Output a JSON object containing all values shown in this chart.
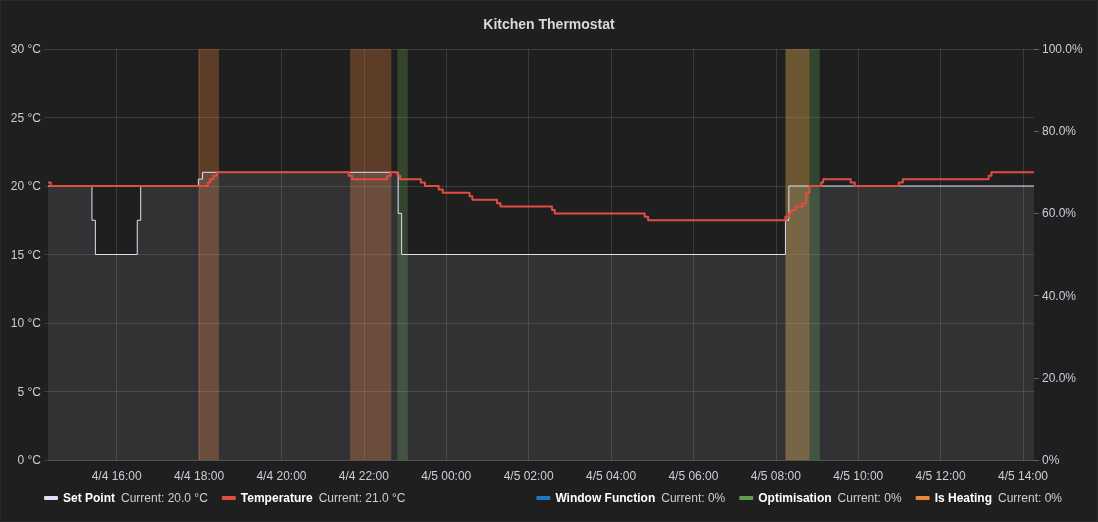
{
  "chart_data": {
    "type": "step",
    "title": "Kitchen Thermostat",
    "xlim": [
      "--04-04T14:20",
      "--04-05T14:16"
    ],
    "xticks": [
      {
        "value": "--04-04T16:00",
        "label": "4/4 16:00"
      },
      {
        "value": "--04-04T18:00",
        "label": "4/4 18:00"
      },
      {
        "value": "--04-04T20:00",
        "label": "4/4 20:00"
      },
      {
        "value": "--04-04T22:00",
        "label": "4/4 22:00"
      },
      {
        "value": "--04-05T00:00",
        "label": "4/5 00:00"
      },
      {
        "value": "--04-05T02:00",
        "label": "4/5 02:00"
      },
      {
        "value": "--04-05T04:00",
        "label": "4/5 04:00"
      },
      {
        "value": "--04-05T06:00",
        "label": "4/5 06:00"
      },
      {
        "value": "--04-05T08:00",
        "label": "4/5 08:00"
      },
      {
        "value": "--04-05T10:00",
        "label": "4/5 10:00"
      },
      {
        "value": "--04-05T12:00",
        "label": "4/5 12:00"
      },
      {
        "value": "--04-05T14:00",
        "label": "4/5 14:00"
      }
    ],
    "ylim": [
      0,
      30
    ],
    "yticks": [
      {
        "value": 0,
        "label": "0 °C"
      },
      {
        "value": 5,
        "label": "5 °C"
      },
      {
        "value": 10,
        "label": "10 °C"
      },
      {
        "value": 15,
        "label": "15 °C"
      },
      {
        "value": 20,
        "label": "20 °C"
      },
      {
        "value": 25,
        "label": "25 °C"
      },
      {
        "value": 30,
        "label": "30 °C"
      }
    ],
    "y2lim": [
      0,
      100
    ],
    "y2ticks": [
      {
        "value": 0,
        "label": "0%"
      },
      {
        "value": 20,
        "label": "20.0%"
      },
      {
        "value": 40,
        "label": "40.0%"
      },
      {
        "value": 60,
        "label": "60.0%"
      },
      {
        "value": 80,
        "label": "80.0%"
      },
      {
        "value": 100,
        "label": "100.0%"
      }
    ],
    "grid": true,
    "legend": "bottom",
    "annotations": [
      "Current: 20.0 °C",
      "Current: 21.0 °C",
      "Current: 0%",
      "Current: 0%",
      "Current: 0%"
    ],
    "bands": [
      {
        "axis": "x",
        "from": "--04-04T22:49",
        "to": "--04-04T23:04",
        "color": "#629e51"
      },
      {
        "axis": "x",
        "from": "--04-05T08:14",
        "to": "--04-05T09:04",
        "color": "#629e51"
      },
      {
        "axis": "x",
        "from": "--04-04T17:59",
        "to": "--04-04T18:29",
        "color": "#ef843c"
      },
      {
        "axis": "x",
        "from": "--04-04T21:40",
        "to": "--04-04T22:40",
        "color": "#ef843c"
      },
      {
        "axis": "x",
        "from": "--04-05T08:14",
        "to": "--04-05T08:49",
        "color": "#ef843c"
      }
    ],
    "series": [
      {
        "name": "Set Point",
        "type": "area",
        "color": "#e0def4",
        "x": [
          "--04-04T14:20",
          "--04-04T15:24",
          "--04-04T15:24",
          "--04-04T15:29",
          "--04-04T15:29",
          "--04-04T16:30",
          "--04-04T16:30",
          "--04-04T16:35",
          "--04-04T16:35",
          "--04-04T17:59",
          "--04-04T17:59",
          "--04-04T18:05",
          "--04-04T18:05",
          "--04-04T22:50",
          "--04-04T22:50",
          "--04-04T22:55",
          "--04-04T22:55",
          "--04-05T08:14",
          "--04-05T08:14",
          "--04-05T08:19",
          "--04-05T08:19",
          "--04-05T14:16"
        ],
        "values": [
          20,
          20,
          17.5,
          17.5,
          15,
          15,
          17.5,
          17.5,
          20,
          20,
          20.5,
          20.5,
          21,
          21,
          18,
          18,
          15,
          15,
          17.5,
          17.5,
          20,
          20
        ]
      },
      {
        "name": "Temperature",
        "color": "#e24d42",
        "x": [
          "--04-04T14:20",
          "--04-04T14:24",
          "--04-04T18:13",
          "--04-04T18:16",
          "--04-04T18:21",
          "--04-04T18:26",
          "--04-04T21:38",
          "--04-04T21:43",
          "--04-04T22:34",
          "--04-04T22:39",
          "--04-04T22:49",
          "--04-04T22:53",
          "--04-04T23:23",
          "--04-04T23:29",
          "--04-04T23:49",
          "--04-04T23:55",
          "--04-05T00:34",
          "--04-05T00:38",
          "--04-05T01:14",
          "--04-05T01:19",
          "--04-05T02:34",
          "--04-05T02:38",
          "--04-05T04:49",
          "--04-05T04:54",
          "--04-05T08:14",
          "--04-05T08:19",
          "--04-05T08:23",
          "--04-05T08:29",
          "--04-05T08:39",
          "--04-05T08:44",
          "--04-05T08:49",
          "--04-05T09:06",
          "--04-05T09:09",
          "--04-05T09:49",
          "--04-05T09:55",
          "--04-05T10:59",
          "--04-05T11:05",
          "--04-05T13:10",
          "--04-05T13:14",
          "--04-05T14:16"
        ],
        "values": [
          20.25,
          20,
          20.25,
          20.5,
          20.75,
          21,
          20.75,
          20.5,
          20.75,
          21,
          20.75,
          20.5,
          20.25,
          20,
          19.75,
          19.5,
          19.25,
          19,
          18.75,
          18.5,
          18.25,
          18,
          17.75,
          17.5,
          17.75,
          18,
          18.25,
          18.5,
          18.75,
          19.5,
          20,
          20.25,
          20.5,
          20.25,
          20,
          20.25,
          20.5,
          20.75,
          21,
          21
        ]
      },
      {
        "name": "Window Function",
        "type": "area",
        "axis": "y2",
        "color": "#1f78c1"
      },
      {
        "name": "Optimisation",
        "type": "area",
        "axis": "y2",
        "color": "#629e51"
      },
      {
        "name": "Is Heating",
        "type": "area",
        "axis": "y2",
        "color": "#ef843c"
      }
    ]
  }
}
